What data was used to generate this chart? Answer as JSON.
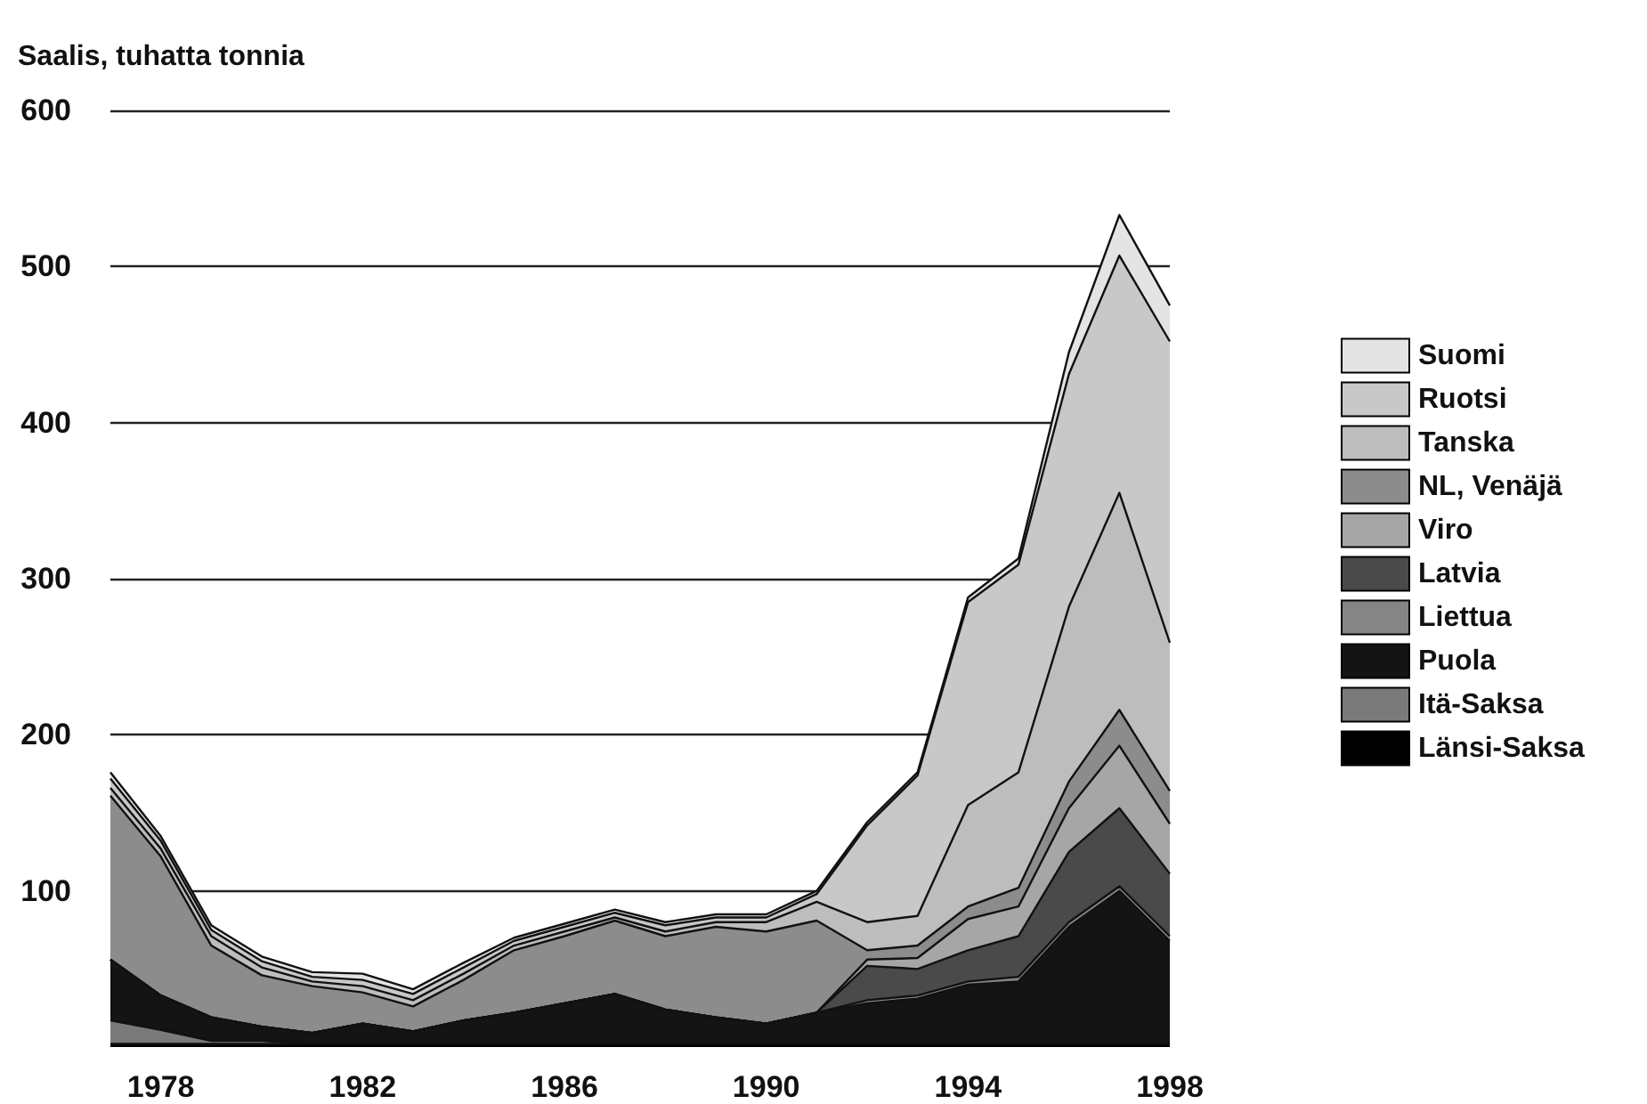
{
  "chart_data": {
    "type": "area",
    "stacked": true,
    "ylabel": "Saalis, tuhatta tonnia",
    "x": [
      1977,
      1978,
      1979,
      1980,
      1981,
      1982,
      1983,
      1984,
      1985,
      1986,
      1987,
      1988,
      1989,
      1990,
      1991,
      1992,
      1993,
      1994,
      1995,
      1996,
      1997,
      1998
    ],
    "xlim": [
      1977,
      1998
    ],
    "xticks": [
      1978,
      1982,
      1986,
      1990,
      1994,
      1998
    ],
    "ylim": [
      0,
      600
    ],
    "yticks": [
      100,
      200,
      300,
      400,
      500,
      600
    ],
    "grid": "y",
    "legend": "right",
    "series": [
      {
        "name": "Länsi-Saksa",
        "color": "#000000",
        "values": [
          2,
          2,
          2,
          2,
          2,
          2,
          2,
          2,
          2,
          2,
          2,
          2,
          2,
          2,
          2,
          2,
          2,
          2,
          2,
          2,
          2,
          2
        ]
      },
      {
        "name": "Itä-Saksa",
        "color": "#7a7a7a",
        "values": [
          15,
          9,
          2,
          2,
          0,
          0,
          0,
          0,
          0,
          0,
          0,
          0,
          0,
          0,
          0,
          0,
          0,
          0,
          0,
          0,
          0,
          0
        ]
      },
      {
        "name": "Puola",
        "color": "#141414",
        "values": [
          39,
          22,
          15,
          9,
          7,
          13,
          8,
          15,
          20,
          26,
          32,
          22,
          17,
          13,
          20,
          26,
          29,
          38,
          40,
          75,
          98,
          66
        ]
      },
      {
        "name": "Liettua",
        "color": "#858585",
        "values": [
          0,
          0,
          0,
          0,
          0,
          0,
          0,
          0,
          0,
          0,
          0,
          0,
          0,
          0,
          0,
          2,
          2,
          2,
          3,
          3,
          3,
          3
        ]
      },
      {
        "name": "Latvia",
        "color": "#4a4a4a",
        "values": [
          0,
          0,
          0,
          0,
          0,
          0,
          0,
          0,
          0,
          0,
          0,
          0,
          0,
          0,
          0,
          22,
          17,
          20,
          26,
          45,
          50,
          40
        ]
      },
      {
        "name": "Viro",
        "color": "#a6a6a6",
        "values": [
          0,
          0,
          0,
          0,
          0,
          0,
          0,
          0,
          0,
          0,
          0,
          0,
          0,
          0,
          0,
          4,
          7,
          20,
          19,
          28,
          40,
          32
        ]
      },
      {
        "name": "NL, Venäjä",
        "color": "#8c8c8c",
        "values": [
          105,
          89,
          46,
          33,
          30,
          20,
          16,
          26,
          40,
          43,
          47,
          47,
          58,
          59,
          59,
          6,
          8,
          8,
          12,
          17,
          23,
          21
        ]
      },
      {
        "name": "Tanska",
        "color": "#bdbdbd",
        "values": [
          5,
          5,
          6,
          5,
          3,
          4,
          4,
          4,
          3,
          3,
          2,
          3,
          3,
          6,
          12,
          18,
          19,
          65,
          74,
          112,
          139,
          95
        ]
      },
      {
        "name": "Ruotsi",
        "color": "#c8c8c8",
        "values": [
          6,
          5,
          4,
          4,
          3,
          4,
          4,
          4,
          3,
          3,
          3,
          4,
          3,
          3,
          5,
          62,
          90,
          130,
          133,
          149,
          152,
          193
        ]
      },
      {
        "name": "Suomi",
        "color": "#e4e4e4",
        "values": [
          4,
          3,
          3,
          3,
          3,
          4,
          3,
          3,
          2,
          2,
          2,
          2,
          2,
          2,
          2,
          2,
          2,
          3,
          4,
          14,
          26,
          23
        ]
      }
    ]
  }
}
